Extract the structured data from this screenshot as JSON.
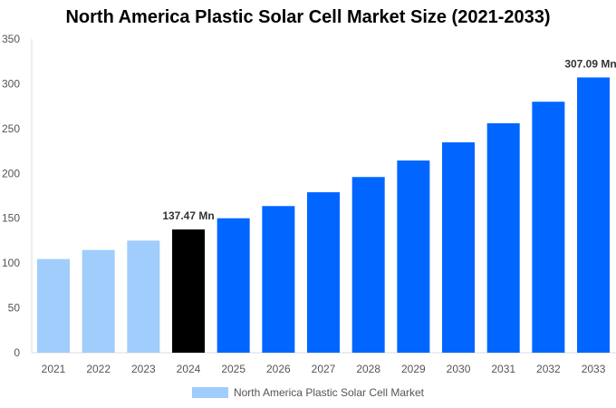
{
  "chart_data": {
    "type": "bar",
    "title": "North America Plastic Solar Cell Market Size (2021-2033)",
    "categories": [
      "2021",
      "2022",
      "2023",
      "2024",
      "2025",
      "2026",
      "2027",
      "2028",
      "2029",
      "2030",
      "2031",
      "2032",
      "2033"
    ],
    "series": [
      {
        "name": "North America Plastic Solar Cell Market",
        "values": [
          104.5,
          114.6,
          125.1,
          137.47,
          150.0,
          163.6,
          179.0,
          196.0,
          214.4,
          234.7,
          256.0,
          280.0,
          307.09
        ]
      }
    ],
    "data_labels": {
      "3": "137.47 Mn",
      "12": "307.09 Mn"
    },
    "ylim": [
      0,
      350
    ],
    "yticks": [
      0,
      50,
      100,
      150,
      200,
      250,
      300,
      350
    ],
    "grid": false,
    "legend_position": "bottom",
    "colors": {
      "historical": "#a0cdfc",
      "base_year": "#000000",
      "forecast": "#0066ff",
      "axis": "#dddddd"
    },
    "bar_color_groups": [
      "historical",
      "historical",
      "historical",
      "base_year",
      "forecast",
      "forecast",
      "forecast",
      "forecast",
      "forecast",
      "forecast",
      "forecast",
      "forecast",
      "forecast"
    ]
  }
}
